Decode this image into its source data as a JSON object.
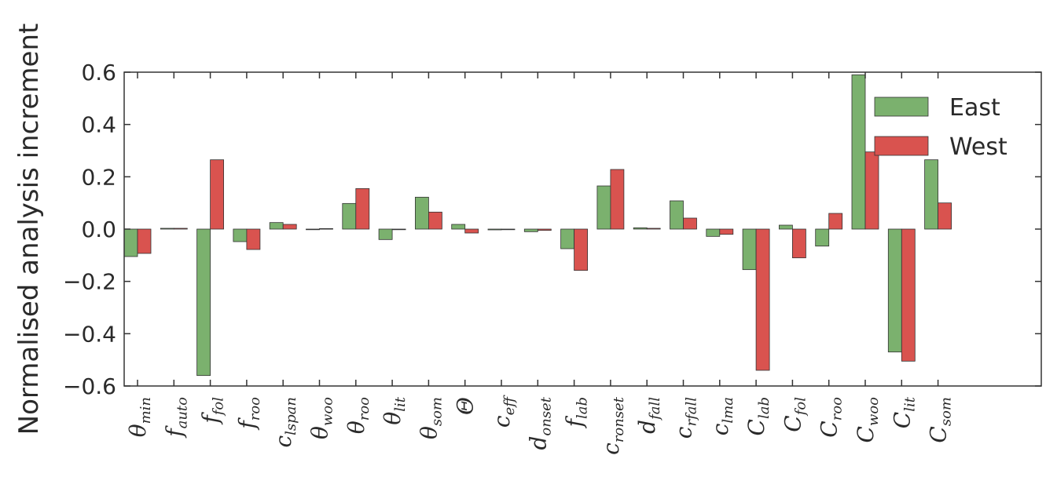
{
  "chart_data": {
    "type": "bar",
    "xlabel": "",
    "ylabel": "Normalised analysis increment",
    "ylim": [
      -0.6,
      0.6
    ],
    "yticks": [
      0.6,
      0.4,
      0.2,
      0.0,
      -0.2,
      -0.4,
      -0.6
    ],
    "ytick_labels": [
      "0.6",
      "0.4",
      "0.2",
      "0.0",
      "−0.2",
      "−0.4",
      "−0.6"
    ],
    "grid": false,
    "legend_position": "top-right",
    "categories": [
      {
        "base": "θ",
        "sub": "min"
      },
      {
        "base": "f",
        "sub": "auto"
      },
      {
        "base": "f",
        "sub": "fol"
      },
      {
        "base": "f",
        "sub": "roo"
      },
      {
        "base": "c",
        "sub": "lspan"
      },
      {
        "base": "θ",
        "sub": "woo"
      },
      {
        "base": "θ",
        "sub": "roo"
      },
      {
        "base": "θ",
        "sub": "lit"
      },
      {
        "base": "θ",
        "sub": "som"
      },
      {
        "base": "Θ",
        "sub": ""
      },
      {
        "base": "c",
        "sub": "eff"
      },
      {
        "base": "d",
        "sub": "onset"
      },
      {
        "base": "f",
        "sub": "lab"
      },
      {
        "base": "c",
        "sub": "ronset"
      },
      {
        "base": "d",
        "sub": "fall"
      },
      {
        "base": "c",
        "sub": "rfall"
      },
      {
        "base": "c",
        "sub": "lma"
      },
      {
        "base": "C",
        "sub": "lab"
      },
      {
        "base": "C",
        "sub": "fol"
      },
      {
        "base": "C",
        "sub": "roo"
      },
      {
        "base": "C",
        "sub": "woo"
      },
      {
        "base": "C",
        "sub": "lit"
      },
      {
        "base": "C",
        "sub": "som"
      }
    ],
    "series": [
      {
        "name": "East",
        "color": "#7bb16e",
        "values": [
          -0.105,
          0.003,
          -0.56,
          -0.048,
          0.025,
          -0.002,
          0.098,
          -0.04,
          0.122,
          0.018,
          -0.003,
          -0.01,
          -0.075,
          0.165,
          0.005,
          0.108,
          -0.028,
          -0.155,
          0.015,
          -0.065,
          0.59,
          -0.47,
          0.265
        ]
      },
      {
        "name": "West",
        "color": "#d9534f",
        "values": [
          -0.093,
          0.003,
          0.265,
          -0.078,
          0.018,
          0.002,
          0.155,
          -0.002,
          0.065,
          -0.015,
          -0.002,
          -0.005,
          -0.158,
          0.228,
          0.003,
          0.042,
          -0.02,
          -0.54,
          -0.11,
          0.06,
          0.295,
          -0.505,
          0.1
        ]
      }
    ]
  },
  "colors": {
    "east": "#7bb16e",
    "west": "#d9534f",
    "axis": "#333333",
    "text": "#2a2a2a"
  }
}
